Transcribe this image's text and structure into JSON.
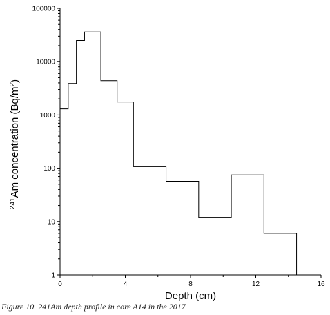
{
  "chart_data": {
    "type": "line",
    "step": true,
    "xlabel": "Depth (cm)",
    "ylabel_superscript": "241",
    "ylabel": "Am concentration (Bq/m",
    "ylabel_unit_superscript": "2",
    "ylabel_tail": ")",
    "xlim": [
      0,
      16
    ],
    "ylim": [
      1,
      100000
    ],
    "yscale": "log",
    "grid": false,
    "legend": "none",
    "x_ticks": [
      0,
      4,
      8,
      12,
      16
    ],
    "x_tick_labels": [
      "0",
      "4",
      "8",
      "12",
      "16"
    ],
    "y_ticks": [
      1,
      10,
      100,
      1000,
      10000,
      100000
    ],
    "y_tick_labels": [
      "1",
      "10",
      "100",
      "1000",
      "10000",
      "100000"
    ],
    "series": [
      {
        "segments": [
          {
            "x_start": 0,
            "x_end": 0.5,
            "value": 1300
          },
          {
            "x_start": 0.5,
            "x_end": 1,
            "value": 3900
          },
          {
            "x_start": 1,
            "x_end": 1.5,
            "value": 25000
          },
          {
            "x_start": 1.5,
            "x_end": 2.5,
            "value": 36000
          },
          {
            "x_start": 2.5,
            "x_end": 3.5,
            "value": 4400
          },
          {
            "x_start": 3.5,
            "x_end": 4.5,
            "value": 1750
          },
          {
            "x_start": 4.5,
            "x_end": 6.5,
            "value": 107
          },
          {
            "x_start": 6.5,
            "x_end": 8.5,
            "value": 57
          },
          {
            "x_start": 8.5,
            "x_end": 10.5,
            "value": 12
          },
          {
            "x_start": 10.5,
            "x_end": 12.5,
            "value": 75
          },
          {
            "x_start": 12.5,
            "x_end": 14.5,
            "value": 6
          }
        ],
        "end_value": 1
      }
    ],
    "line_color": "#000000"
  },
  "caption": "Figure 10. 241Am depth profile in core A14 in the 2017"
}
